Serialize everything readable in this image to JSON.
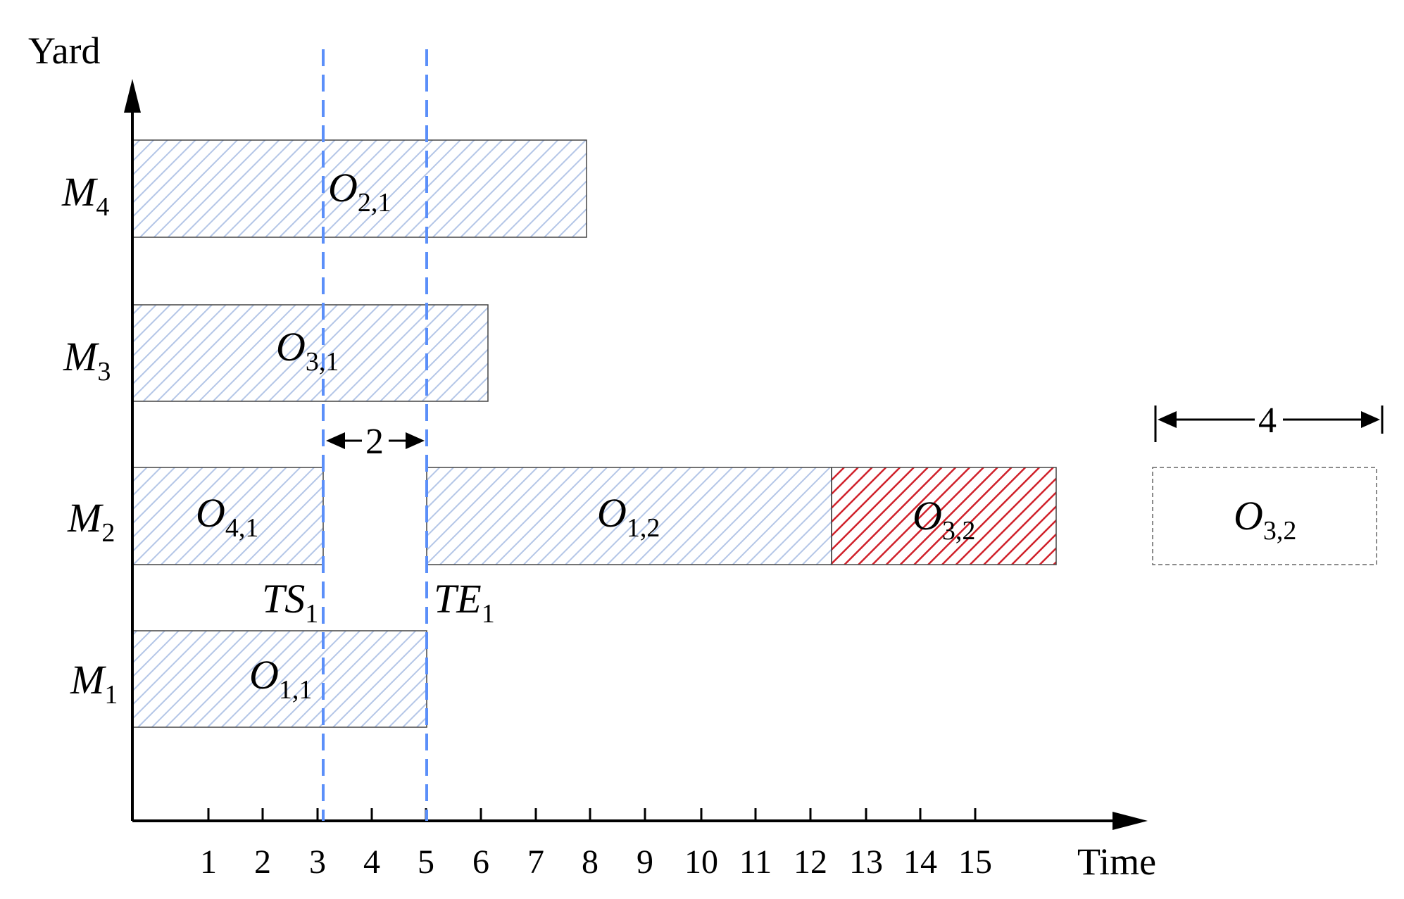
{
  "axes": {
    "y_title": "Yard",
    "x_title": "Time",
    "x_ticks": [
      "1",
      "2",
      "3",
      "4",
      "5",
      "6",
      "7",
      "8",
      "9",
      "10",
      "11",
      "12",
      "13",
      "14",
      "15"
    ]
  },
  "machines": [
    {
      "base": "M",
      "sub": "4"
    },
    {
      "base": "M",
      "sub": "3"
    },
    {
      "base": "M",
      "sub": "2"
    },
    {
      "base": "M",
      "sub": "1"
    }
  ],
  "operations": [
    {
      "base": "O",
      "sub": "2,1",
      "machine": "M4",
      "start": 0,
      "end": 8.4,
      "style": "scheduled"
    },
    {
      "base": "O",
      "sub": "3,1",
      "machine": "M3",
      "start": 0,
      "end": 6.55,
      "style": "scheduled"
    },
    {
      "base": "O",
      "sub": "4,1",
      "machine": "M2",
      "start": 0,
      "end": 3.5,
      "style": "scheduled"
    },
    {
      "base": "O",
      "sub": "1,2",
      "machine": "M2",
      "start": 5.4,
      "end": 12.85,
      "style": "scheduled"
    },
    {
      "base": "O",
      "sub": "3,2",
      "machine": "M2",
      "start": 12.85,
      "end": 17.0,
      "style": "inserted"
    },
    {
      "base": "O",
      "sub": "1,1",
      "machine": "M1",
      "start": 0,
      "end": 5.4,
      "style": "scheduled"
    }
  ],
  "idle_window": {
    "gap_label": "2",
    "start_label": {
      "base": "TS",
      "sub": "1"
    },
    "end_label": {
      "base": "TE",
      "sub": "1"
    }
  },
  "pending_operation": {
    "base": "O",
    "sub": "3,2",
    "duration_label": "4"
  },
  "colors": {
    "scheduled_hatch": "#b4c6e7",
    "inserted_hatch": "#d0202a",
    "window_line": "#5b8ff9",
    "axis": "#000000"
  }
}
